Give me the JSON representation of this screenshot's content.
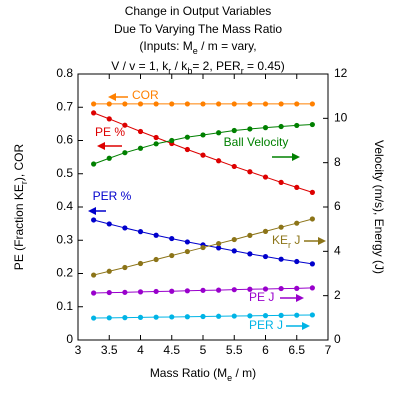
{
  "chart_data": {
    "type": "line",
    "title": [
      "Change in Output Variables",
      "Due To Varying The Mass Ratio"
    ],
    "subtitle": [
      [
        {
          "text": "(Inputs: M"
        },
        {
          "text": "e",
          "sub": true
        },
        {
          "text": " / m  = vary,"
        }
      ],
      [
        {
          "text": "V / v = 1,   k"
        },
        {
          "text": "r",
          "sub": true
        },
        {
          "text": " / k"
        },
        {
          "text": "b",
          "sub": true
        },
        {
          "text": "= 2,  PER"
        },
        {
          "text": "r",
          "sub": true
        },
        {
          "text": " = 0.45)"
        }
      ]
    ],
    "xlabel": [
      {
        "text": "Mass Ratio (M"
      },
      {
        "text": "e",
        "sub": true
      },
      {
        "text": " / m)"
      }
    ],
    "ylabel": [
      {
        "text": "PE (Fraction KE"
      },
      {
        "text": "r",
        "sub": true
      },
      {
        "text": "), COR"
      }
    ],
    "y2label": [
      {
        "text": "Velocity (m/s), Energy (J)"
      }
    ],
    "x": [
      3.25,
      3.5,
      3.75,
      4,
      4.25,
      4.5,
      4.75,
      5,
      5.25,
      5.5,
      5.75,
      6,
      6.25,
      6.5,
      6.75
    ],
    "xlim": [
      3,
      7
    ],
    "xticks": [
      3,
      3.5,
      4,
      4.5,
      5,
      5.5,
      6,
      6.5,
      7
    ],
    "ylim": [
      0,
      0.8
    ],
    "yticks": [
      0,
      0.1,
      0.2,
      0.3,
      0.4,
      0.5,
      0.6,
      0.7,
      0.8
    ],
    "y2lim": [
      0,
      12
    ],
    "y2ticks": [
      0,
      2,
      4,
      6,
      8,
      10,
      12
    ],
    "series": [
      {
        "name": "COR",
        "color": "#ff8000",
        "values": [
          0.71,
          0.71,
          0.71,
          0.71,
          0.71,
          0.71,
          0.71,
          0.71,
          0.71,
          0.71,
          0.71,
          0.71,
          0.71,
          0.71,
          0.71
        ]
      },
      {
        "name": "PE %",
        "color": "#dd0000",
        "values": [
          0.683,
          0.665,
          0.646,
          0.627,
          0.609,
          0.591,
          0.573,
          0.556,
          0.539,
          0.522,
          0.506,
          0.49,
          0.474,
          0.459,
          0.444
        ]
      },
      {
        "name": "Ball Velocity",
        "color": "#008000",
        "axis": "y2",
        "values": [
          7.94,
          8.2,
          8.45,
          8.65,
          8.85,
          9.0,
          9.15,
          9.25,
          9.35,
          9.45,
          9.52,
          9.58,
          9.63,
          9.68,
          9.72
        ]
      },
      {
        "name": "PER %",
        "color": "#0000cc",
        "values": [
          0.361,
          0.349,
          0.337,
          0.326,
          0.315,
          0.305,
          0.295,
          0.286,
          0.277,
          0.268,
          0.259,
          0.251,
          0.243,
          0.236,
          0.229
        ]
      },
      {
        "name": "KE_r J",
        "color": "#8c7418",
        "axis": "y2",
        "values": [
          2.93,
          3.1,
          3.27,
          3.45,
          3.63,
          3.81,
          3.99,
          4.17,
          4.35,
          4.53,
          4.72,
          4.9,
          5.09,
          5.27,
          5.46
        ]
      },
      {
        "name": "PE J",
        "color": "#9900cc",
        "axis": "y2",
        "values": [
          2.12,
          2.14,
          2.15,
          2.17,
          2.19,
          2.2,
          2.22,
          2.24,
          2.25,
          2.27,
          2.29,
          2.3,
          2.32,
          2.33,
          2.35
        ]
      },
      {
        "name": "PER J",
        "color": "#00b4e6",
        "axis": "y2",
        "values": [
          0.99,
          1.0,
          1.01,
          1.02,
          1.03,
          1.04,
          1.05,
          1.06,
          1.07,
          1.08,
          1.09,
          1.1,
          1.11,
          1.12,
          1.13
        ]
      }
    ],
    "annotations": [
      {
        "parts": [
          {
            "text": "COR"
          }
        ],
        "color": "#ff8000",
        "arrow": "left"
      },
      {
        "parts": [
          {
            "text": "PE %"
          }
        ],
        "color": "#dd0000",
        "arrow": "left"
      },
      {
        "parts": [
          {
            "text": "Ball Velocity"
          }
        ],
        "color": "#008000",
        "arrow": "right"
      },
      {
        "parts": [
          {
            "text": "PER %"
          }
        ],
        "color": "#0000cc",
        "arrow": "left"
      },
      {
        "parts": [
          {
            "text": "KE"
          },
          {
            "text": "r",
            "sub": true
          },
          {
            "text": " J"
          }
        ],
        "color": "#8c7418",
        "arrow": "right"
      },
      {
        "parts": [
          {
            "text": "PE J"
          }
        ],
        "color": "#9900cc",
        "arrow": "right"
      },
      {
        "parts": [
          {
            "text": "PER J"
          }
        ],
        "color": "#00b4e6",
        "arrow": "right"
      }
    ]
  }
}
